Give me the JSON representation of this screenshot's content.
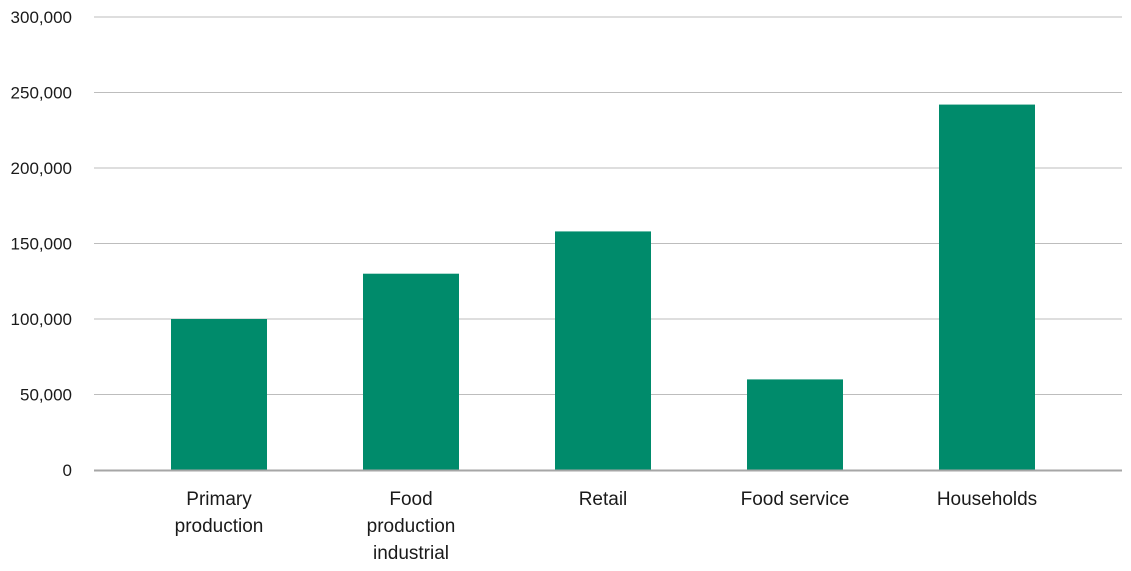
{
  "chart_data": {
    "type": "bar",
    "title": "",
    "xlabel": "",
    "ylabel": "",
    "categories": [
      "Primary production",
      "Food production industrial",
      "Retail",
      "Food service",
      "Households"
    ],
    "category_label_lines": [
      [
        "Primary",
        "production"
      ],
      [
        "Food",
        "production",
        "industrial"
      ],
      [
        "Retail"
      ],
      [
        "Food service"
      ],
      [
        "Households"
      ]
    ],
    "values": [
      100000,
      130000,
      158000,
      60000,
      242000
    ],
    "ylim": [
      0,
      300000
    ],
    "yticks": [
      0,
      50000,
      100000,
      150000,
      200000,
      250000,
      300000
    ],
    "ytick_labels": [
      "0",
      "50,000",
      "100,000",
      "150,000",
      "200,000",
      "250,000",
      "300,000"
    ],
    "grid": true,
    "legend": "none",
    "colors": {
      "bar": "#008B6B",
      "grid": "#bdbdbd",
      "axis": "#a6a6a6",
      "text": "#1a1a1a"
    }
  }
}
